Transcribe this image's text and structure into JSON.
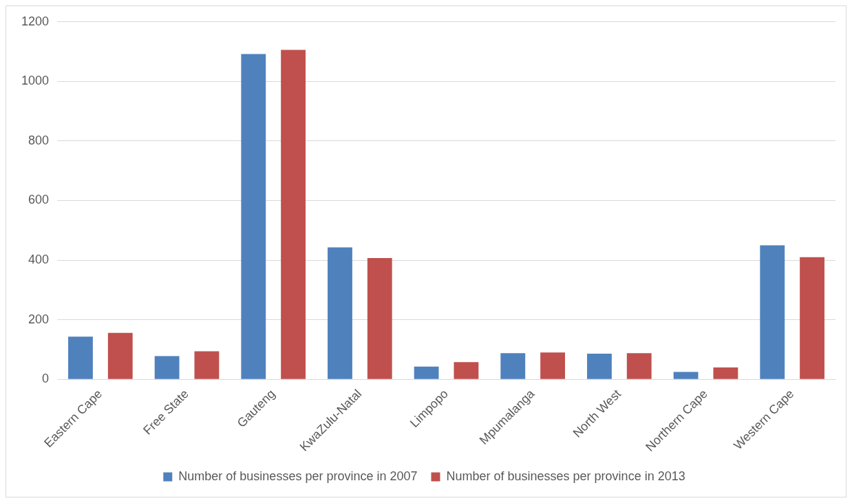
{
  "chart_data": {
    "type": "bar",
    "categories": [
      "Eastern Cape",
      "Free State",
      "Gauteng",
      "KwaZulu-Natal",
      "Limpopo",
      "Mpumalanga",
      "North West",
      "Northern Cape",
      "Western Cape"
    ],
    "series": [
      {
        "name": "Number of businesses per province in 2007",
        "color": "#4f81bd",
        "values": [
          143,
          78,
          1092,
          443,
          43,
          88,
          86,
          25,
          450
        ]
      },
      {
        "name": "Number of businesses per province in 2013",
        "color": "#c0504d",
        "values": [
          156,
          94,
          1106,
          407,
          58,
          90,
          88,
          40,
          410
        ]
      }
    ],
    "ylim": [
      0,
      1200
    ],
    "yticks": [
      0,
      200,
      400,
      600,
      800,
      1000,
      1200
    ],
    "grid": "y",
    "legend": "bottom"
  }
}
